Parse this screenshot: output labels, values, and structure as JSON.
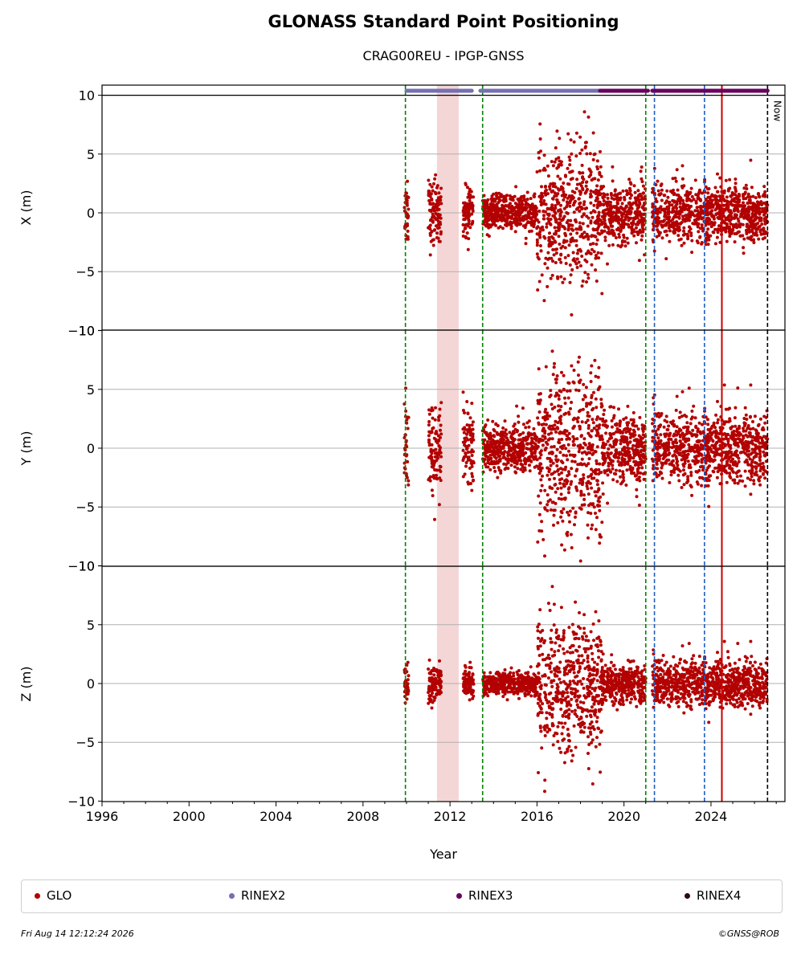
{
  "chart_data": {
    "type": "scatter",
    "title": "GLONASS Standard Point Positioning",
    "subtitle": "CRAG00REU - IPGP-GNSS",
    "xlabel": "Year",
    "xlim": [
      1996,
      2027.4
    ],
    "xticks": [
      1996,
      2000,
      2004,
      2008,
      2012,
      2016,
      2020,
      2024
    ],
    "grid": "horizontal",
    "panels": [
      {
        "ylabel": "X (m)",
        "ylim": [
          -10,
          10.8
        ],
        "yticks": [
          10,
          5,
          0,
          -5,
          -10
        ]
      },
      {
        "ylabel": "Y (m)",
        "ylim": [
          -10,
          10
        ],
        "yticks": [
          10,
          5,
          0,
          -5,
          -10
        ]
      },
      {
        "ylabel": "Z (m)",
        "ylim": [
          -10,
          10
        ],
        "yticks": [
          10,
          5,
          0,
          -5,
          -10
        ]
      }
    ],
    "series": [
      {
        "name": "GLO",
        "color": "#b30000",
        "segments": [
          {
            "x": [
              2009.9,
              2010.1
            ],
            "center": 0,
            "spread": [
              1.5,
              1.8,
              1.0
            ]
          },
          {
            "x": [
              2011.0,
              2011.6
            ],
            "center": 0,
            "spread": [
              1.5,
              2.2,
              1.0
            ]
          },
          {
            "x": [
              2012.6,
              2013.1
            ],
            "center": 0,
            "spread": [
              1.2,
              2.0,
              0.8
            ]
          },
          {
            "x": [
              2013.5,
              2016.0
            ],
            "center": 0,
            "spread": [
              0.9,
              1.2,
              0.6
            ]
          },
          {
            "x": [
              2016.0,
              2019.0
            ],
            "center": 0,
            "spread": [
              3.5,
              4.5,
              3.5
            ]
          },
          {
            "x": [
              2019.0,
              2021.0
            ],
            "center": 0,
            "spread": [
              1.5,
              1.8,
              1.0
            ]
          },
          {
            "x": [
              2021.3,
              2026.6
            ],
            "center": 0,
            "spread": [
              1.5,
              1.8,
              1.2
            ]
          }
        ]
      },
      {
        "name": "RINEX2",
        "color": "#7570b3",
        "segments": [
          [
            2010.0,
            2013.0
          ],
          [
            2013.4,
            2018.9
          ]
        ]
      },
      {
        "name": "RINEX3",
        "color": "#6a0060",
        "segments": [
          [
            2018.9,
            2021.1
          ],
          [
            2021.3,
            2026.6
          ]
        ]
      },
      {
        "name": "RINEX4",
        "color": "#2b0a1a",
        "segments": []
      }
    ],
    "event_lines": [
      {
        "x": 2009.95,
        "color": "#008000",
        "style": "dashed"
      },
      {
        "x": 2013.5,
        "color": "#008000",
        "style": "dashed"
      },
      {
        "x": 2021.0,
        "color": "#008000",
        "style": "dashed"
      },
      {
        "x": 2021.4,
        "color": "#1f5fbf",
        "style": "dashed"
      },
      {
        "x": 2023.7,
        "color": "#1f5fbf",
        "style": "dashed"
      },
      {
        "x": 2024.5,
        "color": "#cc0000",
        "style": "solid"
      },
      {
        "x": 2026.6,
        "color": "#000000",
        "style": "dashed",
        "label": "Now"
      }
    ],
    "shaded_span": {
      "x": [
        2011.4,
        2012.4
      ],
      "color": "#f4d6d6"
    }
  },
  "legend": {
    "items": [
      {
        "label": "GLO",
        "color": "#b30000"
      },
      {
        "label": "RINEX2",
        "color": "#7570b3"
      },
      {
        "label": "RINEX3",
        "color": "#6a0060"
      },
      {
        "label": "RINEX4",
        "color": "#2b0a1a"
      }
    ]
  },
  "footer": {
    "timestamp": "Fri Aug 14 12:12:24 2026",
    "credit": "©GNSS@ROB"
  }
}
